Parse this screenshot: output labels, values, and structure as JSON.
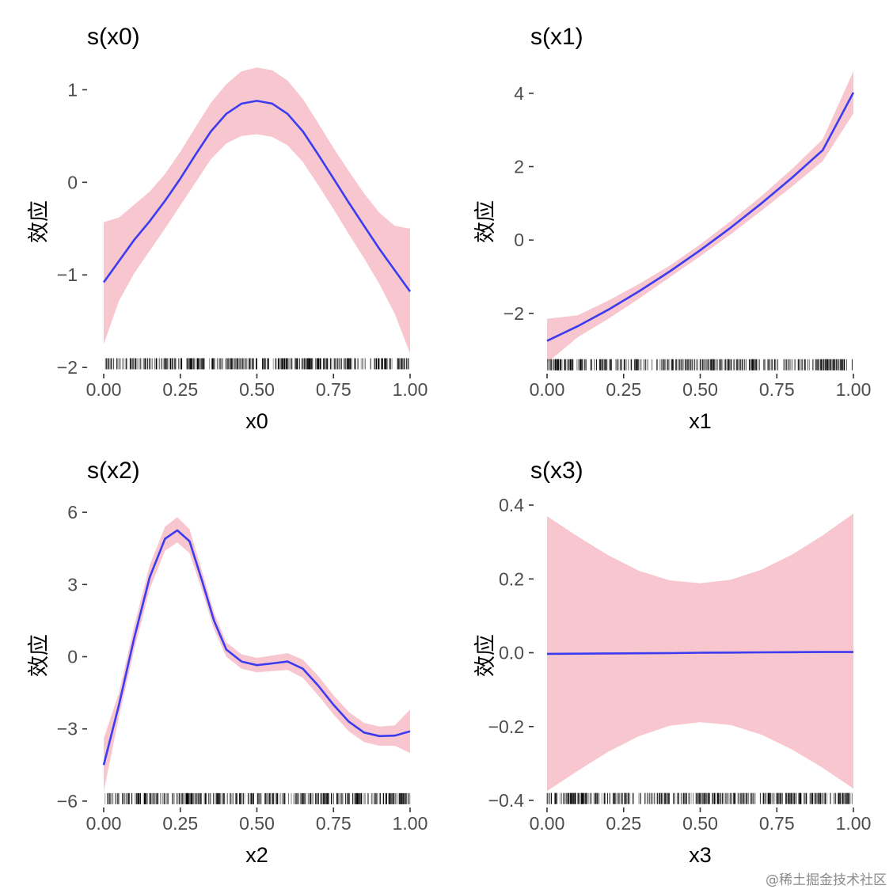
{
  "chart_data": [
    {
      "type": "line",
      "title": "s(x0)",
      "xlabel": "x0",
      "ylabel": "效应",
      "xlim": [
        0,
        1
      ],
      "ylim": [
        -2.05,
        1.2
      ],
      "xticks": [
        "0.00",
        "0.25",
        "0.50",
        "0.75",
        "1.00"
      ],
      "xtick_values": [
        0,
        0.25,
        0.5,
        0.75,
        1
      ],
      "yticks": [
        "−2",
        "−1",
        "0",
        "1"
      ],
      "ytick_values": [
        -2,
        -1,
        0,
        1
      ],
      "rug_y": -1.96,
      "series": [
        {
          "x": [
            0,
            0.05,
            0.1,
            0.15,
            0.2,
            0.25,
            0.3,
            0.35,
            0.4,
            0.45,
            0.5,
            0.55,
            0.6,
            0.65,
            0.7,
            0.75,
            0.8,
            0.85,
            0.9,
            0.95,
            1
          ],
          "y": [
            -1.08,
            -0.85,
            -0.62,
            -0.42,
            -0.2,
            0.04,
            0.3,
            0.55,
            0.74,
            0.85,
            0.88,
            0.85,
            0.74,
            0.55,
            0.3,
            0.04,
            -0.22,
            -0.47,
            -0.72,
            -0.95,
            -1.18
          ],
          "lower": [
            -1.75,
            -1.28,
            -0.98,
            -0.74,
            -0.5,
            -0.25,
            0.0,
            0.25,
            0.42,
            0.5,
            0.52,
            0.49,
            0.4,
            0.22,
            -0.03,
            -0.29,
            -0.56,
            -0.82,
            -1.1,
            -1.42,
            -1.85
          ],
          "upper": [
            -0.43,
            -0.38,
            -0.24,
            -0.1,
            0.09,
            0.33,
            0.6,
            0.86,
            1.06,
            1.2,
            1.24,
            1.21,
            1.1,
            0.9,
            0.64,
            0.37,
            0.12,
            -0.12,
            -0.33,
            -0.47,
            -0.5
          ]
        }
      ]
    },
    {
      "type": "line",
      "title": "s(x1)",
      "xlabel": "x1",
      "ylabel": "效应",
      "xlim": [
        0,
        1
      ],
      "ylim": [
        -3.6,
        4.6
      ],
      "xticks": [
        "0.00",
        "0.25",
        "0.50",
        "0.75",
        "1.00"
      ],
      "xtick_values": [
        0,
        0.25,
        0.5,
        0.75,
        1
      ],
      "yticks": [
        "−2",
        "0",
        "2",
        "4"
      ],
      "ytick_values": [
        -2,
        0,
        2,
        4
      ],
      "rug_y": -3.4,
      "series": [
        {
          "x": [
            0,
            0.1,
            0.2,
            0.3,
            0.4,
            0.5,
            0.6,
            0.7,
            0.8,
            0.9,
            1
          ],
          "y": [
            -2.75,
            -2.35,
            -1.9,
            -1.4,
            -0.86,
            -0.28,
            0.34,
            1.0,
            1.7,
            2.45,
            4.02
          ],
          "lower": [
            -3.35,
            -2.65,
            -2.15,
            -1.6,
            -1.02,
            -0.44,
            0.16,
            0.8,
            1.46,
            2.15,
            3.45
          ],
          "upper": [
            -2.15,
            -2.05,
            -1.65,
            -1.2,
            -0.7,
            -0.12,
            0.52,
            1.2,
            1.94,
            2.75,
            4.6
          ]
        }
      ]
    },
    {
      "type": "line",
      "title": "s(x2)",
      "xlabel": "x2",
      "ylabel": "效应",
      "xlim": [
        0,
        1
      ],
      "ylim": [
        -6.2,
        6.3
      ],
      "xticks": [
        "0.00",
        "0.25",
        "0.50",
        "0.75",
        "1.00"
      ],
      "xtick_values": [
        0,
        0.25,
        0.5,
        0.75,
        1
      ],
      "yticks": [
        "−6",
        "−3",
        "0",
        "3",
        "6"
      ],
      "ytick_values": [
        -6,
        -3,
        0,
        3,
        6
      ],
      "rug_y": -5.9,
      "series": [
        {
          "x": [
            0,
            0.05,
            0.1,
            0.15,
            0.2,
            0.24,
            0.28,
            0.32,
            0.36,
            0.4,
            0.45,
            0.5,
            0.55,
            0.6,
            0.65,
            0.7,
            0.75,
            0.8,
            0.85,
            0.9,
            0.95,
            1
          ],
          "y": [
            -4.5,
            -2.0,
            0.8,
            3.3,
            4.9,
            5.25,
            4.8,
            3.2,
            1.5,
            0.3,
            -0.2,
            -0.35,
            -0.28,
            -0.2,
            -0.5,
            -1.2,
            -2.0,
            -2.7,
            -3.15,
            -3.3,
            -3.28,
            -3.1
          ],
          "lower": [
            -5.6,
            -2.5,
            0.3,
            2.8,
            4.4,
            4.75,
            4.3,
            2.8,
            1.15,
            0.0,
            -0.5,
            -0.65,
            -0.6,
            -0.55,
            -0.88,
            -1.6,
            -2.4,
            -3.1,
            -3.55,
            -3.7,
            -3.7,
            -4.0
          ],
          "upper": [
            -3.4,
            -1.5,
            1.3,
            3.8,
            5.4,
            5.8,
            5.3,
            3.6,
            1.85,
            0.6,
            0.1,
            -0.05,
            0.05,
            0.15,
            -0.12,
            -0.8,
            -1.6,
            -2.3,
            -2.75,
            -2.9,
            -2.85,
            -2.2
          ]
        }
      ]
    },
    {
      "type": "line",
      "title": "s(x3)",
      "xlabel": "x3",
      "ylabel": "效应",
      "xlim": [
        0,
        1
      ],
      "ylim": [
        -0.415,
        0.4
      ],
      "xticks": [
        "0.00",
        "0.25",
        "0.50",
        "0.75",
        "1.00"
      ],
      "xtick_values": [
        0,
        0.25,
        0.5,
        0.75,
        1
      ],
      "yticks": [
        "−0.4",
        "−0.2",
        "0.0",
        "0.2",
        "0.4"
      ],
      "ytick_values": [
        -0.4,
        -0.2,
        0,
        0.2,
        0.4
      ],
      "rug_y": -0.395,
      "series": [
        {
          "x": [
            0,
            0.1,
            0.2,
            0.3,
            0.4,
            0.5,
            0.6,
            0.7,
            0.8,
            0.9,
            1
          ],
          "y": [
            -0.003,
            -0.0025,
            -0.002,
            -0.0015,
            -0.001,
            0.0,
            0.0005,
            0.001,
            0.0015,
            0.002,
            0.002
          ],
          "lower": [
            -0.375,
            -0.32,
            -0.268,
            -0.226,
            -0.198,
            -0.188,
            -0.196,
            -0.222,
            -0.262,
            -0.312,
            -0.368
          ],
          "upper": [
            0.37,
            0.315,
            0.264,
            0.222,
            0.196,
            0.188,
            0.198,
            0.225,
            0.266,
            0.318,
            0.377
          ]
        }
      ]
    }
  ],
  "colors": {
    "line": "#3b3bf0",
    "ribbon": "#f7c6cf",
    "rug": "#000000",
    "tick": "#333333"
  },
  "watermark": "@稀土掘金技术社区"
}
